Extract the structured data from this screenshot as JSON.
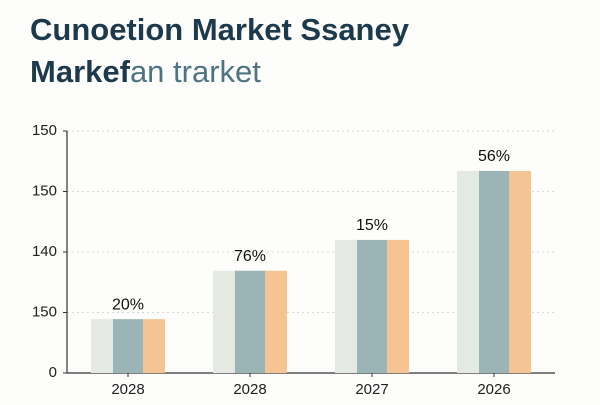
{
  "chart_data": {
    "type": "bar",
    "title": "Cunoetion Market Ssaney",
    "subtitle": [
      "Markef",
      "an trarket"
    ],
    "categories": [
      "2028",
      "2028",
      "2027",
      "2026"
    ],
    "series": [
      {
        "color": "#e4e9e4",
        "values": [
          0.89,
          1.69,
          2.2,
          3.34
        ]
      },
      {
        "color": "#9bb4b5",
        "values": [
          0.89,
          1.69,
          2.2,
          3.34
        ]
      },
      {
        "color": "#f4c592",
        "values": [
          0.89,
          1.69,
          2.2,
          3.34
        ]
      }
    ],
    "annotations": [
      "20%",
      "76%",
      "15%",
      "56%"
    ],
    "ylim": [
      0,
      4
    ],
    "yticks": [
      0,
      {
        "value": 1,
        "label": "150"
      },
      {
        "value": 2,
        "label": "140"
      },
      {
        "value": 3,
        "label": "150"
      },
      {
        "value": 4,
        "label": "150"
      }
    ],
    "grid": true
  }
}
